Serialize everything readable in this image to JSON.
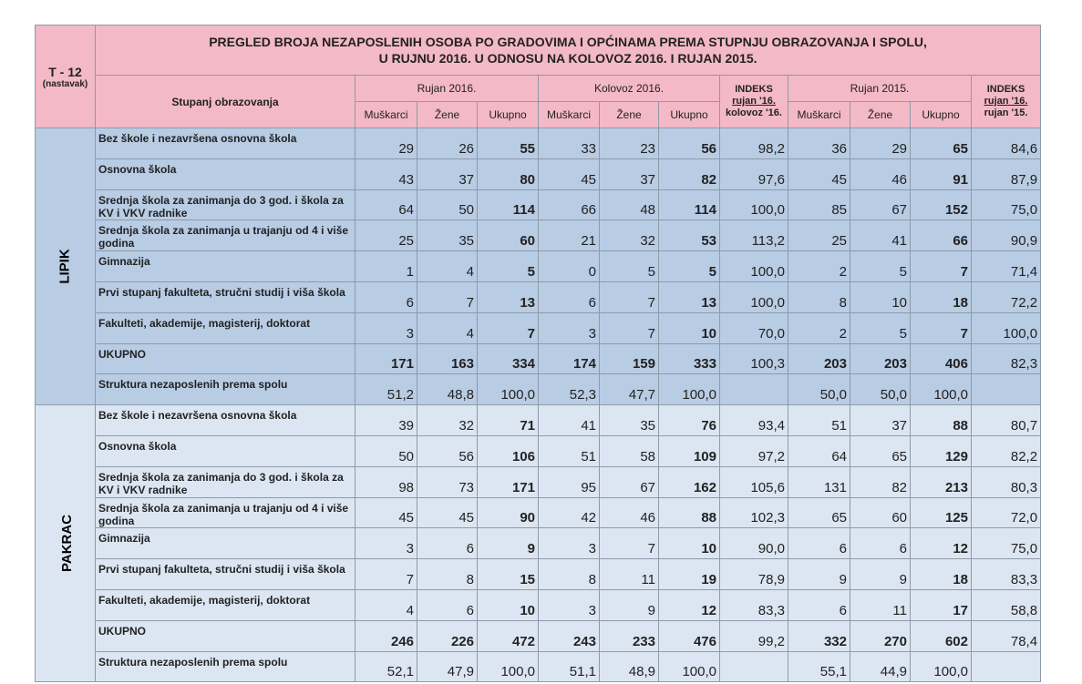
{
  "header": {
    "code": "T - 12",
    "note": "(nastavak)",
    "title_line1": "PREGLED BROJA NEZAPOSLENIH OSOBA PO GRADOVIMA I OPĆINAMA PREMA STUPNJU OBRAZOVANJA I SPOLU,",
    "title_line2": "U RUJNU 2016. U ODNOSU NA KOLOVOZ 2016.  I RUJAN 2015."
  },
  "columns": {
    "row_header": "Stupanj obrazovanja",
    "groups": [
      "Rujan 2016.",
      "Kolovoz 2016.",
      "Rujan 2015."
    ],
    "index1": {
      "title": "INDEKS",
      "line1": "rujan '16.",
      "line2": "kolovoz '16."
    },
    "index2": {
      "title": "INDEKS",
      "line1": "rujan '16.",
      "line2": "rujan '15."
    },
    "sub": [
      "Muškarci",
      "Žene",
      "Ukupno"
    ]
  },
  "sections": [
    {
      "name": "LIPIK",
      "rows": [
        {
          "label": "Bez škole i nezavršena osnovna škola",
          "values": [
            "29",
            "26",
            "55",
            "33",
            "23",
            "56",
            "98,2",
            "36",
            "29",
            "65",
            "84,6"
          ]
        },
        {
          "label": "Osnovna škola",
          "values": [
            "43",
            "37",
            "80",
            "45",
            "37",
            "82",
            "97,6",
            "45",
            "46",
            "91",
            "87,9"
          ]
        },
        {
          "label": "Srednja škola za zanimanja do 3 god. i škola za KV i VKV radnike",
          "values": [
            "64",
            "50",
            "114",
            "66",
            "48",
            "114",
            "100,0",
            "85",
            "67",
            "152",
            "75,0"
          ]
        },
        {
          "label": "Srednja škola za zanimanja u trajanju od 4 i više godina",
          "values": [
            "25",
            "35",
            "60",
            "21",
            "32",
            "53",
            "113,2",
            "25",
            "41",
            "66",
            "90,9"
          ]
        },
        {
          "label": "Gimnazija",
          "values": [
            "1",
            "4",
            "5",
            "0",
            "5",
            "5",
            "100,0",
            "2",
            "5",
            "7",
            "71,4"
          ]
        },
        {
          "label": "Prvi stupanj fakulteta, stručni studij i viša škola",
          "values": [
            "6",
            "7",
            "13",
            "6",
            "7",
            "13",
            "100,0",
            "8",
            "10",
            "18",
            "72,2"
          ]
        },
        {
          "label": "Fakulteti, akademije, magisterij, doktorat",
          "values": [
            "3",
            "4",
            "7",
            "3",
            "7",
            "10",
            "70,0",
            "2",
            "5",
            "7",
            "100,0"
          ]
        },
        {
          "label": "UKUPNO",
          "values": [
            "171",
            "163",
            "334",
            "174",
            "159",
            "333",
            "100,3",
            "203",
            "203",
            "406",
            "82,3"
          ]
        },
        {
          "label": "Struktura nezaposlenih prema spolu",
          "values": [
            "51,2",
            "48,8",
            "100,0",
            "52,3",
            "47,7",
            "100,0",
            null,
            "50,0",
            "50,0",
            "100,0",
            null
          ]
        }
      ]
    },
    {
      "name": "PAKRAC",
      "rows": [
        {
          "label": "Bez škole i nezavršena osnovna škola",
          "values": [
            "39",
            "32",
            "71",
            "41",
            "35",
            "76",
            "93,4",
            "51",
            "37",
            "88",
            "80,7"
          ]
        },
        {
          "label": "Osnovna škola",
          "values": [
            "50",
            "56",
            "106",
            "51",
            "58",
            "109",
            "97,2",
            "64",
            "65",
            "129",
            "82,2"
          ]
        },
        {
          "label": "Srednja škola za zanimanja do 3 god. i škola za KV i VKV radnike",
          "values": [
            "98",
            "73",
            "171",
            "95",
            "67",
            "162",
            "105,6",
            "131",
            "82",
            "213",
            "80,3"
          ]
        },
        {
          "label": "Srednja škola za zanimanja u trajanju od 4 i više godina",
          "values": [
            "45",
            "45",
            "90",
            "42",
            "46",
            "88",
            "102,3",
            "65",
            "60",
            "125",
            "72,0"
          ]
        },
        {
          "label": "Gimnazija",
          "values": [
            "3",
            "6",
            "9",
            "3",
            "7",
            "10",
            "90,0",
            "6",
            "6",
            "12",
            "75,0"
          ]
        },
        {
          "label": "Prvi stupanj fakulteta, stručni studij i viša škola",
          "values": [
            "7",
            "8",
            "15",
            "8",
            "11",
            "19",
            "78,9",
            "9",
            "9",
            "18",
            "83,3"
          ]
        },
        {
          "label": "Fakulteti, akademije, magisterij, doktorat",
          "values": [
            "4",
            "6",
            "10",
            "3",
            "9",
            "12",
            "83,3",
            "6",
            "11",
            "17",
            "58,8"
          ]
        },
        {
          "label": "UKUPNO",
          "values": [
            "246",
            "226",
            "472",
            "243",
            "233",
            "476",
            "99,2",
            "332",
            "270",
            "602",
            "78,4"
          ]
        },
        {
          "label": "Struktura nezaposlenih prema spolu",
          "values": [
            "52,1",
            "47,9",
            "100,0",
            "51,1",
            "48,9",
            "100,0",
            null,
            "55,1",
            "44,9",
            "100,0",
            null
          ]
        }
      ]
    }
  ]
}
